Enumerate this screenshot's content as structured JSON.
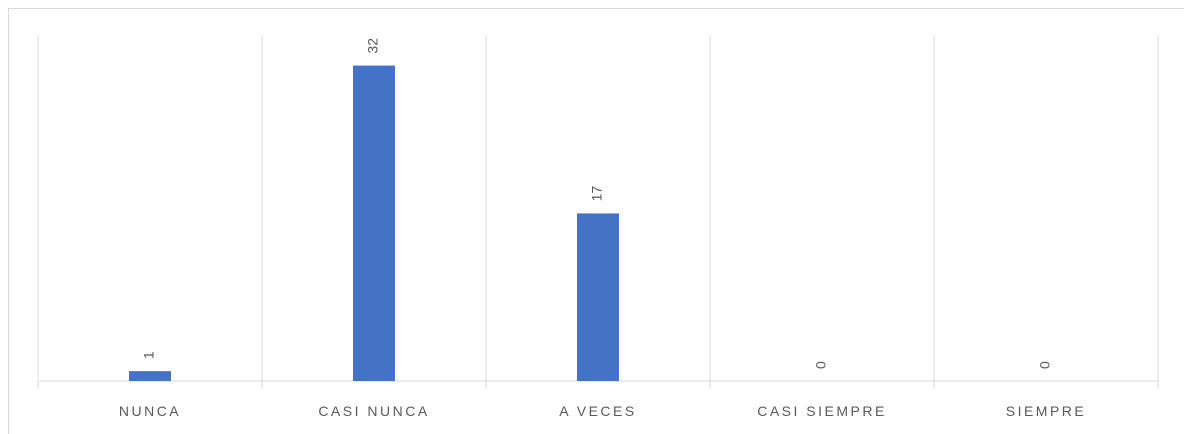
{
  "chart_data": {
    "type": "bar",
    "categories": [
      "NUNCA",
      "CASI NUNCA",
      "A VECES",
      "CASI SIEMPRE",
      "SIEMPRE"
    ],
    "values": [
      1,
      32,
      17,
      0,
      0
    ],
    "color": "#4472c4",
    "ylim": [
      0,
      35
    ],
    "data_labels": true
  }
}
